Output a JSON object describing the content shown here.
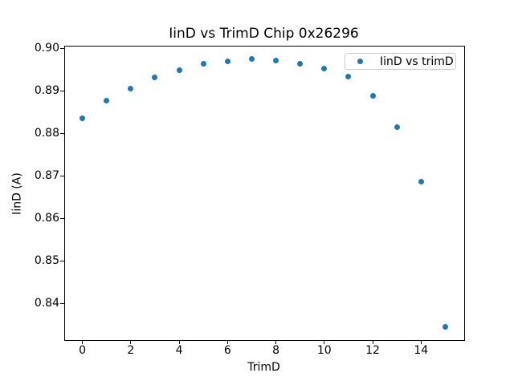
{
  "figure": {
    "kind": "matplotlib-scatter-figure",
    "background": "#ffffff"
  },
  "chart_data": {
    "type": "scatter",
    "title": "IinD vs TrimD Chip 0x26296",
    "xlabel": "TrimD",
    "ylabel": "IinD (A)",
    "legend": {
      "label": "IinD vs trimD",
      "position": "upper right",
      "marker": "dot-icon"
    },
    "series": [
      {
        "name": "IinD vs trimD",
        "x": [
          0,
          1,
          2,
          3,
          4,
          5,
          6,
          7,
          8,
          9,
          10,
          11,
          12,
          13,
          14,
          15
        ],
        "y": [
          0.8835,
          0.8876,
          0.8906,
          0.8931,
          0.8949,
          0.8963,
          0.8969,
          0.8974,
          0.8972,
          0.8964,
          0.8953,
          0.8933,
          0.8888,
          0.8815,
          0.8686,
          0.8345
        ]
      }
    ],
    "marker_color": "#1f77b4",
    "xlim": [
      -0.75,
      15.75
    ],
    "ylim": [
      0.8316,
      0.9006
    ],
    "xticks": [
      0,
      2,
      4,
      6,
      8,
      10,
      12,
      14
    ],
    "xtick_labels": [
      "0",
      "2",
      "4",
      "6",
      "8",
      "10",
      "12",
      "14"
    ],
    "yticks": [
      0.84,
      0.85,
      0.86,
      0.87,
      0.88,
      0.89,
      0.9
    ],
    "ytick_labels": [
      "0.84",
      "0.85",
      "0.86",
      "0.87",
      "0.88",
      "0.89",
      "0.90"
    ],
    "grid": false
  }
}
